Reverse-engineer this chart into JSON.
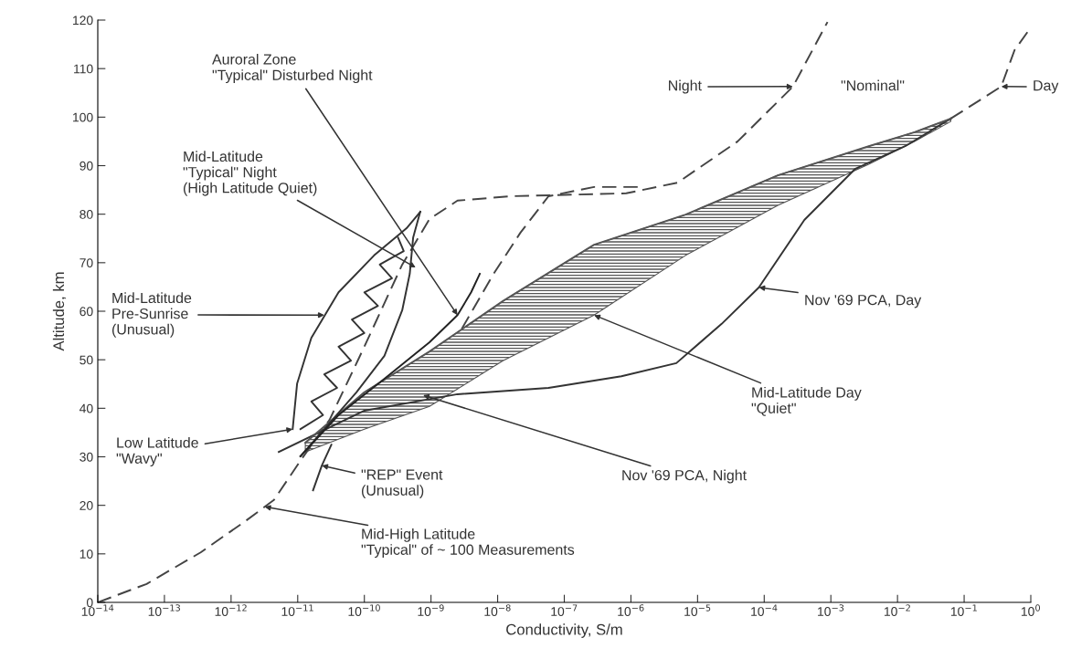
{
  "chart_data": {
    "type": "line",
    "xlabel": "Conductivity, S/m",
    "ylabel": "Altitude, km",
    "log": "x",
    "xlim": [
      1e-14,
      1
    ],
    "ylim": [
      0,
      120
    ],
    "xticks": [
      {
        "value": 1e-14,
        "label": "10$^{−14}$"
      },
      {
        "value": 1e-13,
        "label": "10$^{−13}$"
      },
      {
        "value": 1e-12,
        "label": "10$^{−12}$"
      },
      {
        "value": 1e-11,
        "label": "10$^{−11}$"
      },
      {
        "value": 1e-10,
        "label": "10$^{−10}$"
      },
      {
        "value": 1e-09,
        "label": "10$^{−9}$"
      },
      {
        "value": 1e-08,
        "label": "10$^{−8}$"
      },
      {
        "value": 1e-07,
        "label": "10$^{−7}$"
      },
      {
        "value": 1e-06,
        "label": "10$^{−6}$"
      },
      {
        "value": 1e-05,
        "label": "10$^{−5}$"
      },
      {
        "value": 0.0001,
        "label": "10$^{−4}$"
      },
      {
        "value": 0.001,
        "label": "10$^{−3}$"
      },
      {
        "value": 0.01,
        "label": "10$^{−2}$"
      },
      {
        "value": 0.1,
        "label": "10$^{−1}$"
      },
      {
        "value": 1,
        "label": "10$^{0}$"
      }
    ],
    "yticks": [
      0,
      10,
      20,
      30,
      40,
      50,
      60,
      70,
      80,
      90,
      100,
      110,
      120
    ],
    "series": [
      {
        "line_style": "dashed",
        "color": "#444444",
        "x": [
          1e-14,
          5.4e-14,
          3.5e-13,
          1.7e-12,
          4.4e-12,
          1.1e-11,
          3e-11,
          1e-10,
          3.7e-10,
          9.5e-10,
          2.5e-09,
          1.6e-08,
          8.5e-07,
          5e-06,
          4e-05,
          0.00027,
          0.00089
        ],
        "values": [
          0,
          3.8,
          10.3,
          16.9,
          21.1,
          29.2,
          37.6,
          52.7,
          69.6,
          79.0,
          82.8,
          83.7,
          84.3,
          86.5,
          95.0,
          106.3,
          119.6
        ]
      },
      {
        "line_style": "dashed",
        "color": "#444444",
        "x": [
          2.9e-09,
          8.7e-09,
          2.2e-08,
          5.8e-08,
          2.8e-07,
          1.4e-06
        ],
        "values": [
          56.4,
          67.7,
          76.2,
          83.7,
          85.6,
          85.6
        ]
      },
      {
        "line_style": "solid",
        "color": "#333333",
        "x": [
          5.2e-12,
          1e-10,
          2.5e-09,
          5.8e-08,
          7.2e-07,
          4.8e-06,
          2.3e-05,
          8.3e-05,
          0.0004,
          0.0023,
          0.013,
          0.063
        ],
        "values": [
          31.0,
          39.5,
          42.9,
          44.2,
          46.6,
          49.3,
          57.4,
          64.9,
          78.8,
          89.3,
          94.0,
          99.7
        ]
      },
      {
        "line_style": "dashed",
        "color": "#444444",
        "x": [
          0.063,
          0.36,
          0.57,
          0.89
        ],
        "values": [
          99.7,
          106.3,
          113.8,
          117.5
        ]
      },
      {
        "type": "line",
        "line_style": "solid",
        "color": "#555555",
        "x": [
          1.3e-11,
          1e-10,
          9.5e-10,
          1.2e-08,
          2.8e-07,
          6.6e-06,
          0.00016,
          0.0037,
          0.018,
          0.063
        ],
        "values": [
          32.9,
          43.3,
          51.7,
          62.1,
          73.7,
          79.9,
          88.0,
          94.0,
          96.9,
          99.7
        ],
        "upper": [
          32.9,
          43.3,
          51.7,
          62.1,
          73.7,
          79.9,
          88.0,
          94.0,
          96.9,
          99.7
        ],
        "lower": [
          31.0,
          35.7,
          40.4,
          49.8,
          59.2,
          71.5,
          81.8,
          90.3,
          95.0,
          99.1
        ]
      },
      {
        "line_style": "solid",
        "color": "#333333",
        "x": [
          8.4e-12,
          9.8e-12,
          1.6e-11,
          4.1e-11,
          1.4e-10,
          4.3e-10,
          6.9e-10
        ],
        "values": [
          35.7,
          45.1,
          54.5,
          63.9,
          71.5,
          77.1,
          80.5
        ]
      },
      {
        "line_style": "solid",
        "color": "#333333",
        "x": [
          6.9e-10,
          5.4e-10,
          4.8e-10,
          3.7e-10,
          2e-10,
          7.6e-11,
          2.2e-11,
          1.1e-11
        ],
        "values": [
          80.5,
          75.2,
          67.7,
          60.2,
          50.8,
          43.3,
          34.8,
          30.1
        ]
      },
      {
        "line_style": "solid",
        "color": "#333333",
        "x": [
          1.1e-11,
          2.4e-11,
          1.6e-11,
          3.9e-11,
          2.5e-11,
          6.3e-11,
          4.1e-11,
          1e-10,
          6.5e-11,
          1.6e-10,
          1e-10,
          2.6e-10,
          1.7e-10,
          3.9e-10,
          3.2e-10
        ],
        "values": [
          35.7,
          38.6,
          41.4,
          44.2,
          47.0,
          49.8,
          52.7,
          55.5,
          58.3,
          61.1,
          63.9,
          66.8,
          69.6,
          72.4,
          75.2
        ]
      },
      {
        "line_style": "solid",
        "color": "#222222",
        "x": [
          1.1e-11,
          4.1e-11,
          2e-10,
          9.5e-10,
          2.5e-09,
          4e-09,
          5.4e-09
        ],
        "values": [
          30.1,
          38.6,
          46.1,
          53.6,
          59.2,
          63.9,
          67.7
        ]
      },
      {
        "line_style": "solid",
        "color": "#333333",
        "x": [
          1.7e-11,
          2.3e-11,
          3.2e-11
        ],
        "values": [
          23.1,
          28.2,
          32.5
        ]
      }
    ],
    "annotations": [
      {
        "text": "Auroral Zone\n\"Typical\" Disturbed Night",
        "x": 2.5e-09,
        "y": 59.2
      },
      {
        "text": "Mid-Latitude\n\"Typical\" Night\n(High Latitude Quiet)",
        "x": 5.9e-10,
        "y": 69.0
      },
      {
        "text": "Mid-Latitude\nPre-Sunrise\n(Unusual)",
        "x": 2.5e-11,
        "y": 59.2
      },
      {
        "text": "Low Latitude\n\"Wavy\"",
        "x": 8.4e-12,
        "y": 35.7
      },
      {
        "text": "\"REP\" Event\n(Unusual)",
        "x": 2.3e-11,
        "y": 28.2
      },
      {
        "text": "Mid-High Latitude\n\"Typical\" of ~ 100 Measurements",
        "x": 3.2e-12,
        "y": 19.7
      },
      {
        "text": "Nov '69 PCA, Night",
        "x": 7.6e-10,
        "y": 42.7
      },
      {
        "text": "Mid-Latitude Day\n\"Quiet\"",
        "x": 2.8e-07,
        "y": 59.2
      },
      {
        "text": "Nov '69 PCA, Day",
        "x": 8.3e-05,
        "y": 64.9
      },
      {
        "text": "Night",
        "x": 0.00027,
        "y": 106.3
      },
      "\"Nominal\"",
      {
        "text": "Day",
        "x": 0.36,
        "y": 106.3
      }
    ]
  }
}
